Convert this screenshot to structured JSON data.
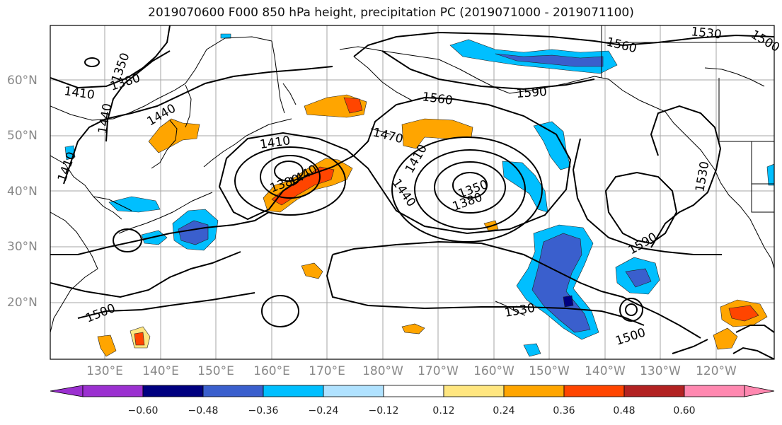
{
  "title": "2019070600 F000 850 hPa height, precipitation PC (2019071000 - 2019071100)",
  "lat_labels": [
    {
      "label": "60°N",
      "value": 60
    },
    {
      "label": "50°N",
      "value": 50
    },
    {
      "label": "40°N",
      "value": 40
    },
    {
      "label": "30°N",
      "value": 30
    },
    {
      "label": "20°N",
      "value": 20
    }
  ],
  "lon_labels": [
    "130°E",
    "140°E",
    "150°E",
    "160°E",
    "170°E",
    "180°W",
    "170°W",
    "160°W",
    "150°W",
    "140°W",
    "130°W",
    "120°W"
  ],
  "contour_labels": [
    "1350",
    "1380",
    "1410",
    "1440",
    "1410",
    "1440",
    "1470",
    "1410",
    "1440",
    "1350",
    "1380",
    "1560",
    "1590",
    "1560",
    "1530",
    "1500",
    "1380",
    "1410",
    "1440",
    "1530",
    "1590",
    "1530",
    "1500",
    "1500"
  ],
  "colorbar": {
    "tick_labels": [
      "−0.60",
      "−0.48",
      "−0.36",
      "−0.24",
      "−0.12",
      "0.12",
      "0.24",
      "0.36",
      "0.48",
      "0.60"
    ],
    "colors": [
      "#9b30d0",
      "#000080",
      "#3a5fcd",
      "#00bfff",
      "#b0e2ff",
      "#ffffff",
      "#ffe680",
      "#ffa500",
      "#ff4500",
      "#b22222",
      "#ff88b0"
    ]
  }
}
